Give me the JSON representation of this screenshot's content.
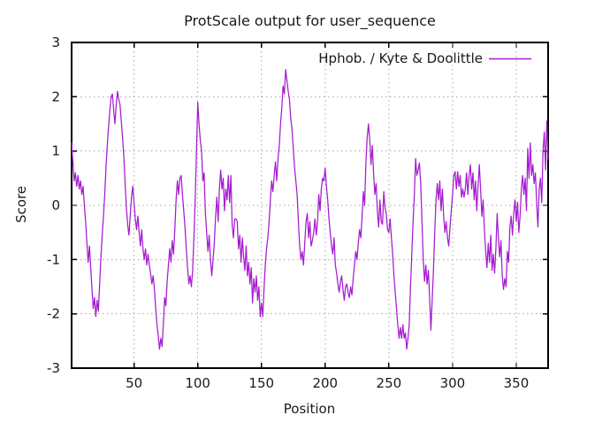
{
  "chart_data": {
    "type": "line",
    "title": "ProtScale output for user_sequence",
    "xlabel": "Position",
    "ylabel": "Score",
    "xlim": [
      1,
      375
    ],
    "ylim": [
      -3,
      3
    ],
    "x_ticks": [
      50,
      100,
      150,
      200,
      250,
      300,
      350
    ],
    "y_ticks": [
      -3,
      -2,
      -1,
      0,
      1,
      2,
      3
    ],
    "grid": true,
    "legend_position": "top-right-inside",
    "background": "#ffffff",
    "line_color": "#a51bd1",
    "series": [
      {
        "name": "Hphob. / Kyte & Doolittle",
        "x_start": 1,
        "x_step": 1,
        "values": [
          1.15,
          0.8,
          0.45,
          0.6,
          0.35,
          0.55,
          0.3,
          0.45,
          0.2,
          0.35,
          0.0,
          -0.3,
          -0.7,
          -1.05,
          -0.75,
          -1.15,
          -1.55,
          -1.9,
          -1.7,
          -2.05,
          -1.75,
          -1.95,
          -1.45,
          -0.95,
          -0.55,
          -0.2,
          0.2,
          0.7,
          1.1,
          1.45,
          1.75,
          2.0,
          2.05,
          1.75,
          1.5,
          1.85,
          2.1,
          1.95,
          1.85,
          1.55,
          1.25,
          0.9,
          0.4,
          -0.05,
          -0.35,
          -0.55,
          -0.2,
          0.15,
          0.35,
          0.05,
          -0.25,
          -0.45,
          -0.2,
          -0.5,
          -0.75,
          -0.45,
          -0.8,
          -1.0,
          -0.8,
          -1.1,
          -0.9,
          -1.1,
          -1.25,
          -1.45,
          -1.3,
          -1.55,
          -1.9,
          -2.2,
          -2.4,
          -2.65,
          -2.45,
          -2.6,
          -2.2,
          -1.7,
          -1.85,
          -1.4,
          -1.1,
          -0.8,
          -1.05,
          -0.65,
          -0.9,
          -0.45,
          0.1,
          0.45,
          0.2,
          0.5,
          0.55,
          0.2,
          -0.1,
          -0.4,
          -0.8,
          -1.15,
          -1.45,
          -1.3,
          -1.5,
          -1.2,
          -0.6,
          0.1,
          1.0,
          1.9,
          1.5,
          1.2,
          1.0,
          0.45,
          0.6,
          -0.15,
          -0.5,
          -0.85,
          -0.55,
          -1.0,
          -1.3,
          -1.0,
          -0.7,
          -0.2,
          0.15,
          -0.3,
          0.3,
          0.65,
          0.3,
          0.5,
          -0.1,
          0.3,
          0.1,
          0.55,
          0.05,
          0.55,
          -0.35,
          -0.6,
          -0.25,
          -0.25,
          -0.3,
          -0.8,
          -0.55,
          -1.05,
          -0.6,
          -0.95,
          -1.2,
          -0.75,
          -1.3,
          -1.05,
          -1.45,
          -1.15,
          -1.8,
          -1.35,
          -1.6,
          -1.3,
          -1.75,
          -1.5,
          -2.05,
          -1.8,
          -2.05,
          -1.55,
          -1.1,
          -0.8,
          -0.6,
          -0.3,
          0.1,
          0.45,
          0.25,
          0.55,
          0.8,
          0.45,
          0.85,
          1.1,
          1.5,
          1.8,
          2.2,
          2.05,
          2.5,
          2.3,
          2.1,
          1.95,
          1.6,
          1.4,
          1.05,
          0.7,
          0.45,
          0.2,
          -0.3,
          -0.75,
          -1.0,
          -0.85,
          -1.1,
          -0.7,
          -0.3,
          -0.15,
          -0.6,
          -0.3,
          -0.75,
          -0.65,
          -0.5,
          -0.25,
          -0.55,
          -0.3,
          0.2,
          -0.1,
          0.3,
          0.5,
          0.45,
          0.68,
          0.35,
          0.1,
          -0.25,
          -0.5,
          -0.75,
          -0.9,
          -0.6,
          -1.1,
          -1.25,
          -1.45,
          -1.6,
          -1.4,
          -1.3,
          -1.55,
          -1.75,
          -1.5,
          -1.45,
          -1.6,
          -1.7,
          -1.5,
          -1.65,
          -1.35,
          -1.1,
          -0.85,
          -1.0,
          -0.7,
          -0.45,
          -0.6,
          -0.2,
          0.25,
          0.0,
          0.8,
          1.25,
          1.5,
          1.2,
          0.75,
          1.1,
          0.6,
          0.2,
          0.4,
          -0.1,
          -0.4,
          0.1,
          -0.3,
          -0.35,
          0.25,
          -0.05,
          -0.15,
          -0.45,
          -0.5,
          -0.25,
          -0.6,
          -0.9,
          -1.3,
          -1.6,
          -1.9,
          -2.2,
          -2.45,
          -2.25,
          -2.45,
          -2.2,
          -2.45,
          -2.35,
          -2.65,
          -2.45,
          -2.2,
          -1.5,
          -0.9,
          -0.3,
          0.2,
          0.86,
          0.55,
          0.65,
          0.78,
          0.4,
          -0.3,
          -1.0,
          -1.4,
          -1.1,
          -1.45,
          -1.2,
          -1.7,
          -2.3,
          -1.75,
          -1.2,
          -0.5,
          0.1,
          0.4,
          0.1,
          0.45,
          -0.1,
          0.3,
          -0.2,
          -0.5,
          -0.3,
          -0.6,
          -0.75,
          -0.4,
          -0.1,
          0.2,
          0.55,
          0.62,
          0.3,
          0.62,
          0.35,
          0.55,
          0.15,
          0.3,
          0.15,
          0.3,
          0.6,
          0.2,
          0.55,
          0.75,
          0.3,
          0.6,
          0.1,
          0.45,
          -0.1,
          0.35,
          0.75,
          0.3,
          -0.2,
          0.1,
          -0.45,
          -0.85,
          -1.15,
          -0.7,
          -1.05,
          -0.55,
          -1.2,
          -0.9,
          -1.25,
          -0.8,
          -0.15,
          -0.6,
          -0.95,
          -0.65,
          -1.3,
          -1.55,
          -1.35,
          -1.5,
          -0.85,
          -1.05,
          -0.4,
          -0.2,
          -0.55,
          -0.15,
          0.1,
          -0.3,
          0.05,
          -0.5,
          -0.2,
          0.3,
          0.55,
          0.2,
          0.5,
          -0.1,
          1.05,
          0.5,
          1.15,
          0.55,
          0.75,
          0.4,
          0.6,
          0.05,
          -0.4,
          0.3,
          0.5,
          0.05,
          1.0,
          1.35,
          0.65,
          1.55,
          0.85
        ]
      }
    ]
  }
}
